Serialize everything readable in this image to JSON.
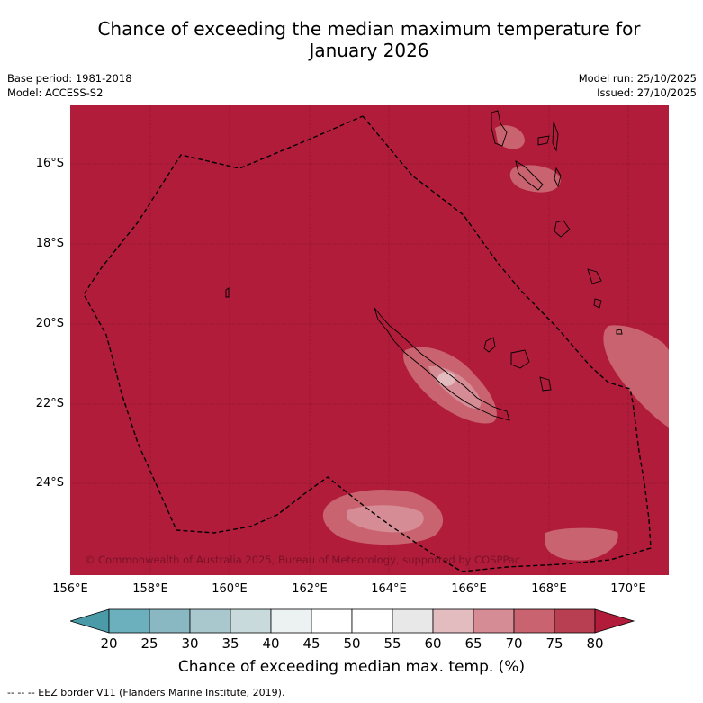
{
  "title": {
    "line1": "Chance of exceeding the median maximum temperature for",
    "line2": "January 2026"
  },
  "meta": {
    "base_period": "Base period: 1981-2018",
    "model": "Model: ACCESS-S2",
    "model_run": "Model run: 25/10/2025",
    "issued": "Issued: 27/10/2025"
  },
  "map": {
    "copyright": "© Commonwealth of Australia 2025, Bureau of Meteorology, supported by COSPPac",
    "lat_labels": [
      "16°S",
      "18°S",
      "20°S",
      "22°S",
      "24°S"
    ],
    "lon_labels": [
      "156°E",
      "158°E",
      "160°E",
      "162°E",
      "164°E",
      "166°E",
      "168°E",
      "170°E"
    ],
    "background_color": "#b11c3b"
  },
  "colorbar": {
    "ticks": [
      "20",
      "25",
      "30",
      "35",
      "40",
      "45",
      "50",
      "55",
      "60",
      "65",
      "70",
      "75",
      "80"
    ],
    "colors": [
      "#6bb0bc",
      "#8ab8c2",
      "#a8c8cd",
      "#c9dadd",
      "#ecf1f2",
      "#ffffff",
      "#ffffff",
      "#e8e8e8",
      "#e3bcc0",
      "#d68c95",
      "#c8636f",
      "#b73f51"
    ],
    "low_color": "#4a9aa8",
    "high_color": "#b11c3b",
    "label": "Chance of exceeding median max. temp. (%)"
  },
  "footer": "--  --  -- EEZ border V11 (Flanders Marine Institute, 2019)."
}
